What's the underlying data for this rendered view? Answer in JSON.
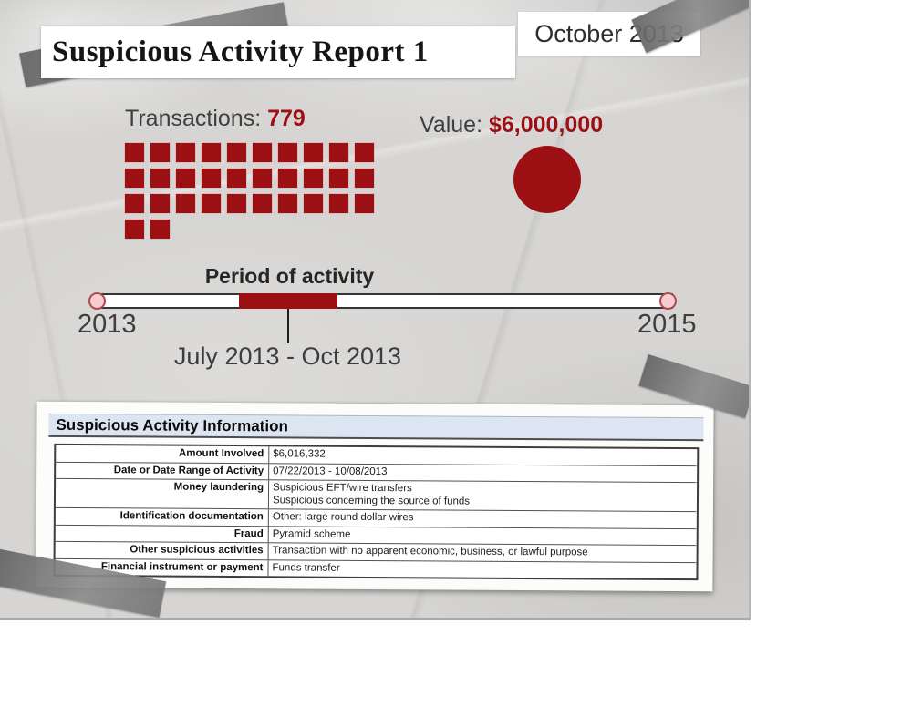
{
  "header": {
    "title": "Suspicious Activity Report 1",
    "date_label": "October 2013"
  },
  "stats": {
    "transactions_label": "Transactions:",
    "transactions_value": "779",
    "value_label": "Value:",
    "value_amount": "$6,000,000",
    "waffle": {
      "total_squares": 32,
      "columns": 10
    }
  },
  "timeline": {
    "title": "Period of activity",
    "start_label": "2013",
    "end_label": "2015",
    "range_label": "July 2013 - Oct 2013"
  },
  "table": {
    "header": "Suspicious Activity Information",
    "rows": [
      {
        "label": "Amount Involved",
        "value": "$6,016,332"
      },
      {
        "label": "Date or Date Range of Activity",
        "value": "07/22/2013 - 10/08/2013"
      },
      {
        "label": "Money laundering",
        "value": "Suspicious EFT/wire transfers\nSuspicious concerning the source of funds"
      },
      {
        "label": "Identification documentation",
        "value": "Other: large round dollar wires"
      },
      {
        "label": "Fraud",
        "value": "Pyramid scheme"
      },
      {
        "label": "Other suspicious activities",
        "value": "Transaction with no apparent economic, business, or lawful purpose"
      },
      {
        "label": "Financial instrument or payment",
        "value": "Funds transfer"
      }
    ]
  },
  "colors": {
    "accent_red": "#9c1014",
    "paper_gray": "#d6d5d3",
    "table_header_blue": "#dce6f2"
  },
  "chart_data": [
    {
      "type": "bar",
      "subtype": "waffle-unit-chart",
      "title": "Transactions: 779",
      "categories": [
        "Transactions"
      ],
      "values": [
        779
      ],
      "unit_squares_shown": 32,
      "columns_per_row": 10,
      "rows_of_squares": [
        10,
        10,
        10,
        2
      ]
    },
    {
      "type": "scatter",
      "subtype": "proportional-bubble",
      "title": "Value: $6,000,000",
      "categories": [
        "Value"
      ],
      "values": [
        6000000
      ],
      "label": "$6,000,000"
    },
    {
      "type": "area",
      "subtype": "timeline-range",
      "title": "Period of activity",
      "axis_range": [
        "2013",
        "2015"
      ],
      "highlight_start": "July 2013",
      "highlight_end": "Oct 2013",
      "highlight_label": "July 2013 - Oct 2013",
      "highlight_fraction": [
        0.25,
        0.42
      ]
    },
    {
      "type": "table",
      "title": "Suspicious Activity Information",
      "rows": [
        [
          "Amount Involved",
          "$6,016,332"
        ],
        [
          "Date or Date Range of Activity",
          "07/22/2013 - 10/08/2013"
        ],
        [
          "Money laundering",
          "Suspicious EFT/wire transfers; Suspicious concerning the source of funds"
        ],
        [
          "Identification documentation",
          "Other: large round dollar wires"
        ],
        [
          "Fraud",
          "Pyramid scheme"
        ],
        [
          "Other suspicious activities",
          "Transaction with no apparent economic, business, or lawful purpose"
        ],
        [
          "Financial instrument or payment",
          "Funds transfer"
        ]
      ]
    }
  ]
}
